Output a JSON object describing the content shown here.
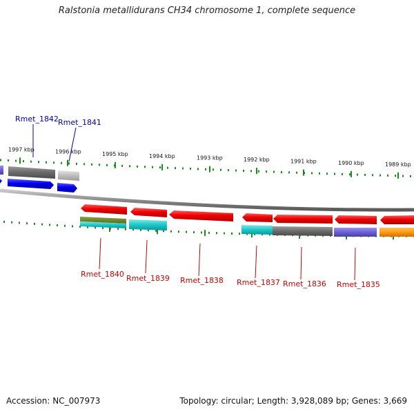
{
  "title": "Ralstonia metallidurans CH34 chromosome 1, complete sequence",
  "footer": {
    "accession": "Accession: NC_007973",
    "summary": "Topology: circular; Length: 3,928,089 bp; Genes: 3,669"
  },
  "colors": {
    "label_upper": "#0000aa",
    "label_lower": "#cc0000",
    "tick": "#1a8a1a",
    "backbone": "#808080"
  },
  "ticks": [
    {
      "label": "1997 kbp"
    },
    {
      "label": "1996 kbp"
    },
    {
      "label": "1995 kbp"
    },
    {
      "label": "1994 kbp"
    },
    {
      "label": "1993 kbp"
    },
    {
      "label": "1992 kbp"
    },
    {
      "label": "1991 kbp"
    },
    {
      "label": "1990 kbp"
    },
    {
      "label": "1989 kbp"
    }
  ],
  "genes": [
    {
      "name": "Rmet_1842",
      "strand": "upper"
    },
    {
      "name": "Rmet_1841",
      "strand": "upper"
    },
    {
      "name": "Rmet_1840",
      "strand": "lower"
    },
    {
      "name": "Rmet_1839",
      "strand": "lower"
    },
    {
      "name": "Rmet_1838",
      "strand": "lower"
    },
    {
      "name": "Rmet_1837",
      "strand": "lower"
    },
    {
      "name": "Rmet_1836",
      "strand": "lower"
    },
    {
      "name": "Rmet_1835",
      "strand": "lower"
    }
  ]
}
